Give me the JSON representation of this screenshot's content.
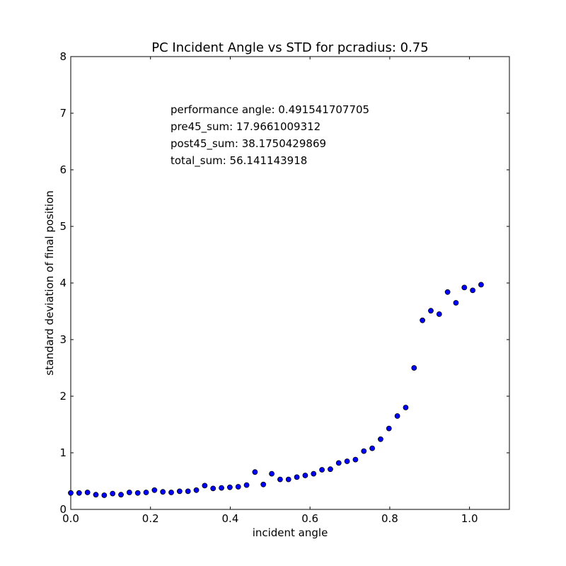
{
  "chart_data": {
    "type": "scatter",
    "title": "PC Incident Angle vs STD for pcradius: 0.75",
    "xlabel": "incident angle",
    "ylabel": "standard deviation of final position",
    "xlim": [
      0.0,
      1.1
    ],
    "ylim": [
      0,
      8
    ],
    "xticks": [
      "0.0",
      "0.2",
      "0.4",
      "0.6",
      "0.8",
      "1.0"
    ],
    "xtick_values": [
      0.0,
      0.2,
      0.4,
      0.6,
      0.8,
      1.0
    ],
    "yticks": [
      "0",
      "1",
      "2",
      "3",
      "4",
      "5",
      "6",
      "7",
      "8"
    ],
    "ytick_values": [
      0,
      1,
      2,
      3,
      4,
      5,
      6,
      7,
      8
    ],
    "grid": false,
    "marker_color": "#0000ff",
    "annotations": [
      "performance angle: 0.491541707705",
      "pre45_sum: 17.9661009312",
      "post45_sum: 38.1750429869",
      "total_sum: 56.141143918"
    ],
    "x": [
      0.0,
      0.021,
      0.042,
      0.063,
      0.084,
      0.105,
      0.126,
      0.147,
      0.168,
      0.189,
      0.21,
      0.231,
      0.252,
      0.273,
      0.294,
      0.315,
      0.336,
      0.357,
      0.378,
      0.399,
      0.42,
      0.441,
      0.462,
      0.483,
      0.504,
      0.525,
      0.546,
      0.567,
      0.588,
      0.609,
      0.63,
      0.651,
      0.672,
      0.693,
      0.714,
      0.735,
      0.756,
      0.777,
      0.798,
      0.819,
      0.84,
      0.861,
      0.882,
      0.903,
      0.924,
      0.945,
      0.966,
      0.987,
      1.008,
      1.029
    ],
    "y": [
      0.29,
      0.29,
      0.3,
      0.26,
      0.25,
      0.28,
      0.26,
      0.3,
      0.29,
      0.3,
      0.34,
      0.31,
      0.3,
      0.32,
      0.32,
      0.34,
      0.42,
      0.37,
      0.38,
      0.39,
      0.4,
      0.43,
      0.66,
      0.44,
      0.63,
      0.53,
      0.53,
      0.57,
      0.6,
      0.63,
      0.7,
      0.71,
      0.82,
      0.85,
      0.88,
      1.03,
      1.08,
      1.24,
      1.43,
      1.65,
      1.8,
      2.5,
      3.34,
      3.51,
      3.45,
      3.84,
      3.65,
      3.92,
      3.87,
      3.97
    ]
  }
}
